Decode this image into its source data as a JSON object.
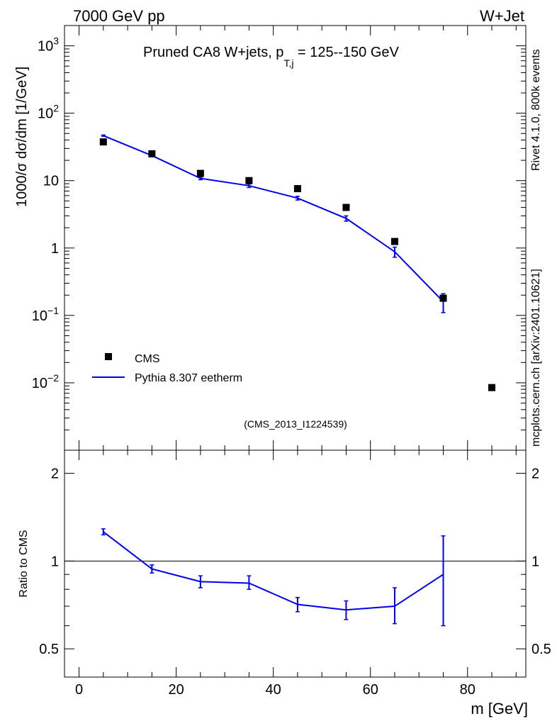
{
  "header": {
    "left": "7000 GeV pp",
    "right": "W+Jet"
  },
  "side_labels": {
    "rivet": "Rivet 4.1.0,  800k events",
    "mcplots": "mcplots.cern.ch [arXiv:2401.10621]"
  },
  "chart_data": [
    {
      "type": "scatter",
      "panel": "main",
      "title": "Pruned CA8 W+jets, p_{T,j} = 125--150 GeV",
      "title_parts": {
        "prefix": "Pruned CA8 W+jets, p",
        "sub": "T,j",
        "suffix": " = 125--150 GeV"
      },
      "analysis_id": "(CMS_2013_I1224539)",
      "ylabel": "1000/σ  dσ/dm [1/GeV]",
      "yscale": "log",
      "ylim": [
        0.001,
        2000
      ],
      "xlim": [
        -3,
        92
      ],
      "y_ticks": [
        {
          "label": "10^3",
          "base": "10",
          "exp": "3",
          "value": 1000
        },
        {
          "label": "10^2",
          "base": "10",
          "exp": "2",
          "value": 100
        },
        {
          "label": "10",
          "base": "10",
          "exp": "",
          "value": 10
        },
        {
          "label": "1",
          "base": "1",
          "exp": "",
          "value": 1
        },
        {
          "label": "10^-1",
          "base": "10",
          "exp": "−1",
          "value": 0.1
        },
        {
          "label": "10^-2",
          "base": "10",
          "exp": "−2",
          "value": 0.01
        }
      ],
      "legend": {
        "position": "lower-left",
        "entries": [
          {
            "name": "CMS",
            "style": "square marker",
            "color": "#000000"
          },
          {
            "name": "Pythia 8.307 eetherm",
            "style": "line",
            "color": "#0000ee"
          }
        ]
      },
      "series": [
        {
          "name": "CMS",
          "color": "#000000",
          "x": [
            5,
            15,
            25,
            35,
            45,
            55,
            65,
            75,
            85
          ],
          "y": [
            37.5,
            25.0,
            12.8,
            10.0,
            7.6,
            4.0,
            1.25,
            0.18,
            0.0085
          ]
        },
        {
          "name": "Pythia 8.307 eetherm",
          "color": "#0000ee",
          "x": [
            5,
            15,
            25,
            35,
            45,
            55,
            65,
            75
          ],
          "x_edges": [
            0,
            10,
            20,
            30,
            40,
            50,
            60,
            70,
            80
          ],
          "y": [
            46.5,
            23.5,
            10.8,
            8.4,
            5.5,
            2.75,
            0.88,
            0.16
          ],
          "yerr_lo": [
            1.0,
            0.8,
            0.5,
            0.5,
            0.35,
            0.25,
            0.15,
            0.05
          ],
          "yerr_hi": [
            1.0,
            0.8,
            0.5,
            0.5,
            0.35,
            0.25,
            0.15,
            0.05
          ]
        }
      ]
    },
    {
      "type": "line",
      "panel": "ratio",
      "xlabel": "m [GeV]",
      "ylabel": "Ratio to CMS",
      "yscale": "log",
      "ylim": [
        0.4,
        2.4
      ],
      "xlim": [
        -3,
        92
      ],
      "reference_line": 1,
      "y_ticks": [
        {
          "label": "2",
          "value": 2
        },
        {
          "label": "1",
          "value": 1
        },
        {
          "label": "0.5",
          "value": 0.5
        }
      ],
      "x_ticks": [
        {
          "label": "0",
          "value": 0
        },
        {
          "label": "20",
          "value": 20
        },
        {
          "label": "40",
          "value": 40
        },
        {
          "label": "60",
          "value": 60
        },
        {
          "label": "80",
          "value": 80
        }
      ],
      "series": [
        {
          "name": "Pythia 8.307 eetherm / CMS",
          "color": "#0000ee",
          "x": [
            5,
            15,
            25,
            35,
            45,
            55,
            65,
            75
          ],
          "y": [
            1.26,
            0.94,
            0.85,
            0.84,
            0.71,
            0.68,
            0.7,
            0.9
          ],
          "yerr_lo": [
            0.03,
            0.03,
            0.04,
            0.04,
            0.04,
            0.05,
            0.09,
            0.3
          ],
          "yerr_hi": [
            0.03,
            0.03,
            0.04,
            0.05,
            0.04,
            0.05,
            0.11,
            0.32
          ]
        }
      ]
    }
  ]
}
